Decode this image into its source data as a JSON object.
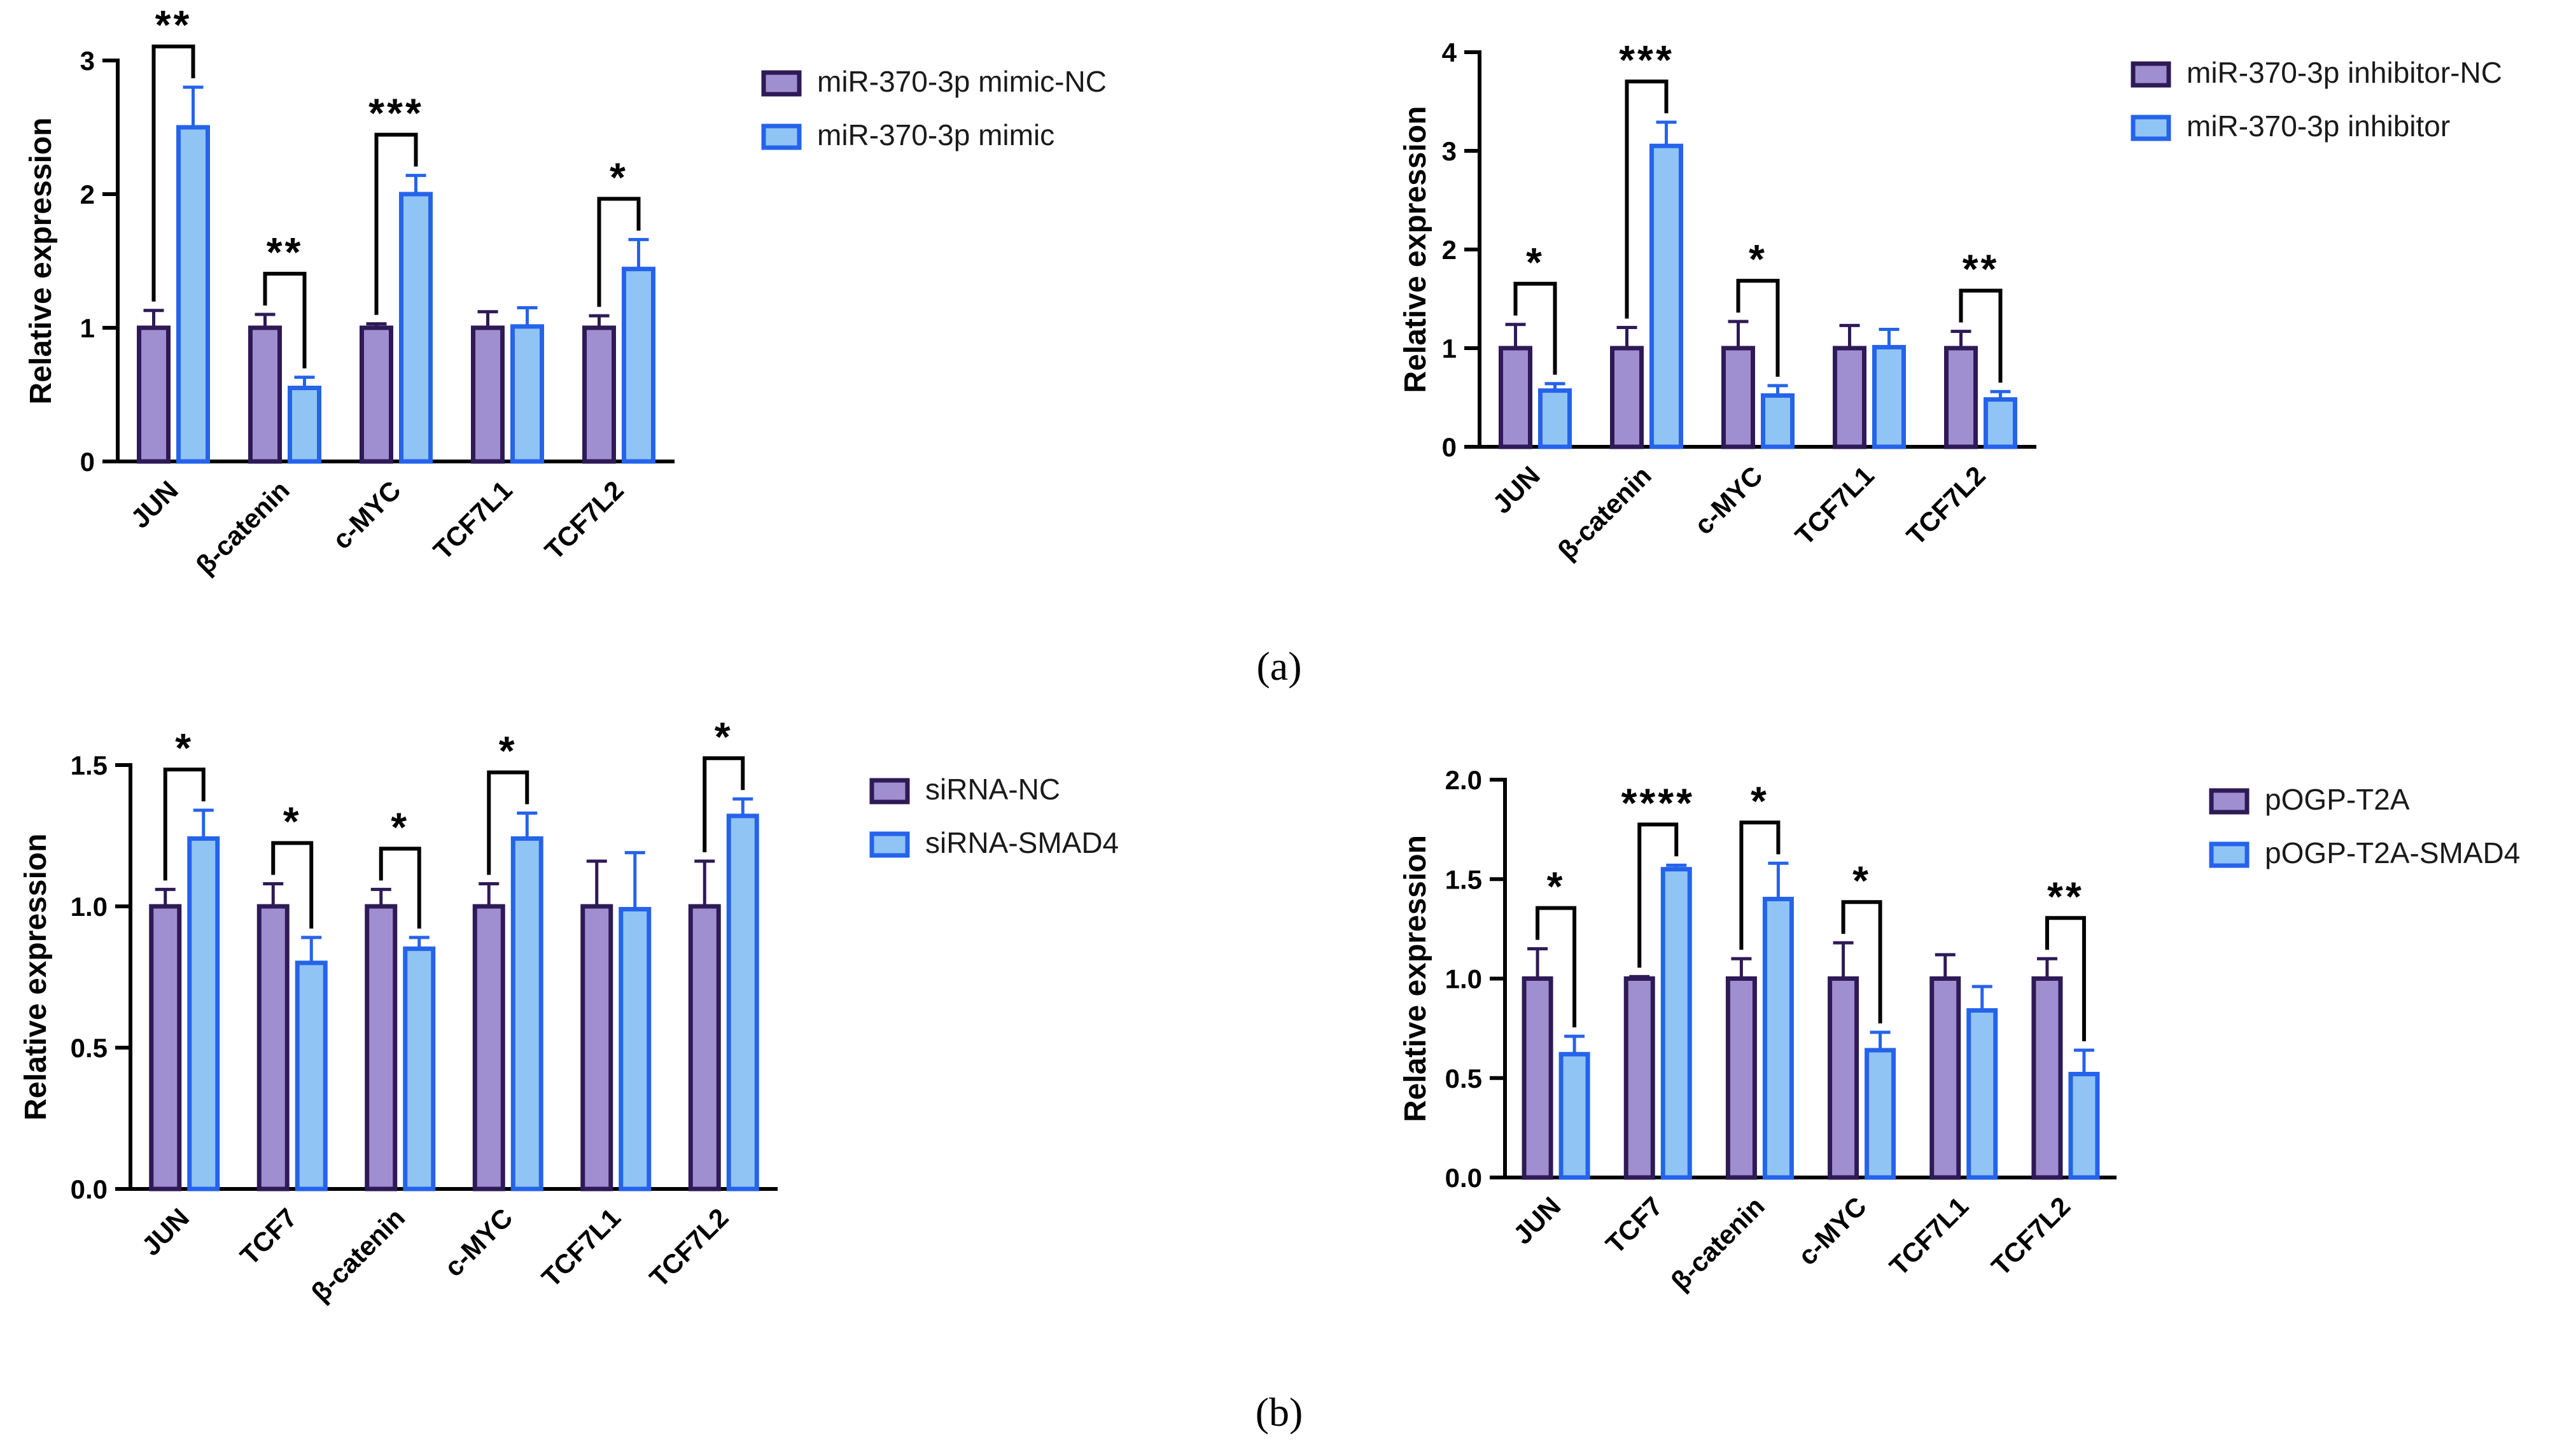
{
  "colors": {
    "control_fill": "#a08fd0",
    "control_stroke": "#2e1a56",
    "treatment_fill": "#90c4f4",
    "treatment_stroke": "#2563eb"
  },
  "panel_labels": [
    "(a)",
    "(b)"
  ],
  "chart_data": [
    {
      "type": "bar",
      "ylabel": "Relative expression",
      "ylim": [
        0,
        3
      ],
      "yticks": [
        0,
        1,
        2,
        3
      ],
      "categories": [
        "JUN",
        "β-catenin",
        "c-MYC",
        "TCF7L1",
        "TCF7L2"
      ],
      "series": [
        {
          "name": "miR-370-3p mimic-NC",
          "values": [
            1.0,
            1.0,
            1.0,
            1.0,
            1.0
          ],
          "errors": [
            0.13,
            0.1,
            0.03,
            0.12,
            0.09
          ]
        },
        {
          "name": "miR-370-3p mimic",
          "values": [
            2.5,
            0.55,
            2.0,
            1.01,
            1.44
          ],
          "errors": [
            0.3,
            0.08,
            0.14,
            0.14,
            0.22
          ]
        }
      ],
      "significance": [
        "**",
        "**",
        "***",
        "",
        "*"
      ],
      "legend": [
        "miR-370-3p mimic-NC",
        "miR-370-3p mimic"
      ]
    },
    {
      "type": "bar",
      "ylabel": "Relative expression",
      "ylim": [
        0,
        4
      ],
      "yticks": [
        0,
        1,
        2,
        3,
        4
      ],
      "categories": [
        "JUN",
        "β-catenin",
        "c-MYC",
        "TCF7L1",
        "TCF7L2"
      ],
      "series": [
        {
          "name": "miR-370-3p inhibitor-NC",
          "values": [
            1.0,
            1.0,
            1.0,
            1.0,
            1.0
          ],
          "errors": [
            0.24,
            0.21,
            0.27,
            0.23,
            0.17
          ]
        },
        {
          "name": "miR-370-3p inhibitor",
          "values": [
            0.57,
            3.05,
            0.52,
            1.01,
            0.48
          ],
          "errors": [
            0.07,
            0.24,
            0.1,
            0.18,
            0.08
          ]
        }
      ],
      "significance": [
        "*",
        "***",
        "*",
        "",
        "**"
      ],
      "legend": [
        "miR-370-3p inhibitor-NC",
        "miR-370-3p inhibitor"
      ]
    },
    {
      "type": "bar",
      "ylabel": "Relative expression",
      "ylim": [
        0,
        1.5
      ],
      "yticks": [
        "0.0",
        "0.5",
        "1.0",
        "1.5"
      ],
      "categories": [
        "JUN",
        "TCF7",
        "β-catenin",
        "c-MYC",
        "TCF7L1",
        "TCF7L2"
      ],
      "series": [
        {
          "name": "siRNA-NC",
          "values": [
            1.0,
            1.0,
            1.0,
            1.0,
            1.0,
            1.0
          ],
          "errors": [
            0.06,
            0.08,
            0.06,
            0.08,
            0.16,
            0.16
          ]
        },
        {
          "name": "siRNA-SMAD4",
          "values": [
            1.24,
            0.8,
            0.85,
            1.24,
            0.99,
            1.32
          ],
          "errors": [
            0.1,
            0.09,
            0.04,
            0.09,
            0.2,
            0.06
          ]
        }
      ],
      "significance": [
        "*",
        "*",
        "*",
        "*",
        "",
        "*"
      ],
      "legend": [
        "siRNA-NC",
        "siRNA-SMAD4"
      ]
    },
    {
      "type": "bar",
      "ylabel": "Relative expression",
      "ylim": [
        0,
        2.0
      ],
      "yticks": [
        "0.0",
        "0.5",
        "1.0",
        "1.5",
        "2.0"
      ],
      "categories": [
        "JUN",
        "TCF7",
        "β-catenin",
        "c-MYC",
        "TCF7L1",
        "TCF7L2"
      ],
      "series": [
        {
          "name": "pOGP-T2A",
          "values": [
            1.0,
            1.0,
            1.0,
            1.0,
            1.0,
            1.0
          ],
          "errors": [
            0.15,
            0.01,
            0.1,
            0.18,
            0.12,
            0.1
          ]
        },
        {
          "name": "pOGP-T2A-SMAD4",
          "values": [
            0.62,
            1.55,
            1.4,
            0.64,
            0.84,
            0.52
          ],
          "errors": [
            0.09,
            0.02,
            0.18,
            0.09,
            0.12,
            0.12
          ]
        }
      ],
      "significance": [
        "*",
        "****",
        "*",
        "*",
        "",
        "**"
      ],
      "legend": [
        "pOGP-T2A",
        "pOGP-T2A-SMAD4"
      ]
    }
  ]
}
